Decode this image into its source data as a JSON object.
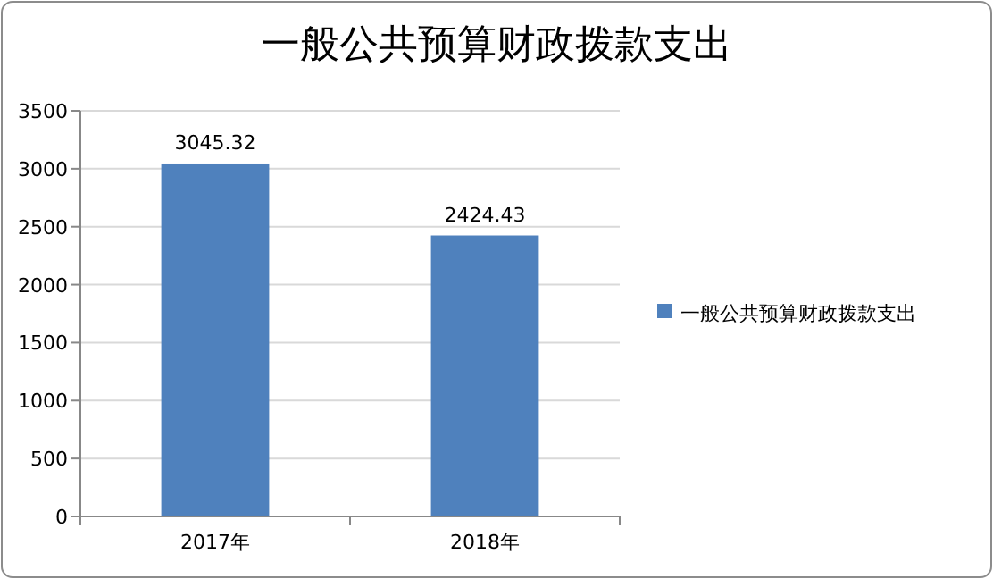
{
  "chart_data": {
    "type": "bar",
    "title": "一般公共预算财政拨款支出",
    "categories": [
      "2017年",
      "2018年"
    ],
    "series": [
      {
        "name": "一般公共预算财政拨款支出",
        "color": "#4f81bd",
        "values": [
          3045.32,
          2424.43
        ]
      }
    ],
    "ylim": [
      0,
      3500
    ],
    "yticks": [
      0,
      500,
      1000,
      1500,
      2000,
      2500,
      3000,
      3500
    ],
    "grid": "y",
    "legend": "right",
    "data_labels": true
  }
}
